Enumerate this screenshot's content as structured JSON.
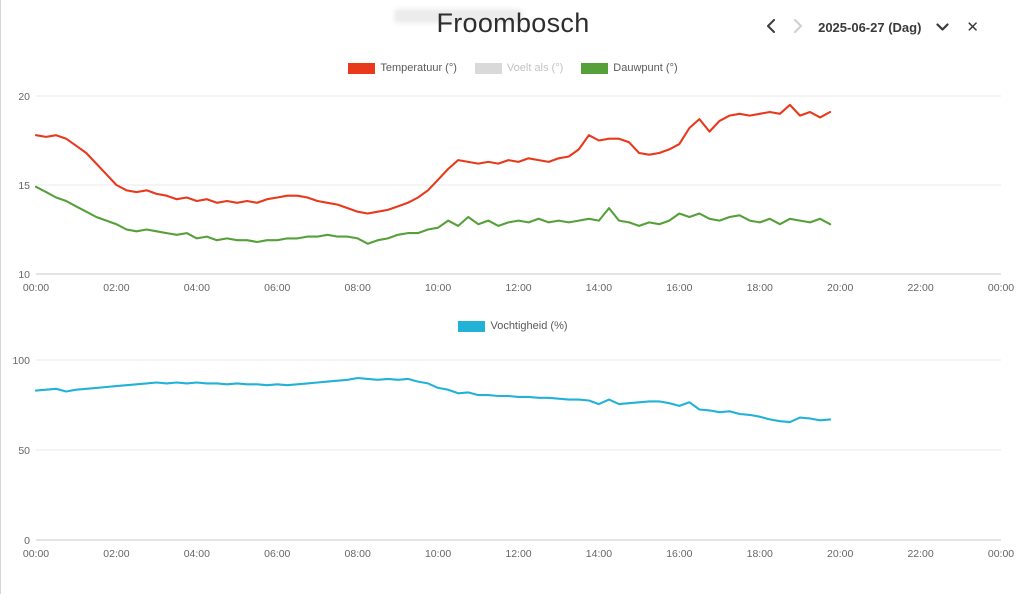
{
  "header": {
    "title": "Froombosch",
    "date_label": "2025-06-27 (Dag)",
    "close_glyph": "✕"
  },
  "chart_data": [
    {
      "type": "line",
      "title": "",
      "x_range": [
        0,
        24
      ],
      "ylim": [
        10,
        20
      ],
      "y_ticks": [
        10,
        15,
        20
      ],
      "x_ticks": [
        {
          "h": 0,
          "label": "00:00"
        },
        {
          "h": 2,
          "label": "02:00"
        },
        {
          "h": 4,
          "label": "04:00"
        },
        {
          "h": 6,
          "label": "06:00"
        },
        {
          "h": 8,
          "label": "08:00"
        },
        {
          "h": 10,
          "label": "10:00"
        },
        {
          "h": 12,
          "label": "12:00"
        },
        {
          "h": 14,
          "label": "14:00"
        },
        {
          "h": 16,
          "label": "16:00"
        },
        {
          "h": 18,
          "label": "18:00"
        },
        {
          "h": 20,
          "label": "20:00"
        },
        {
          "h": 22,
          "label": "22:00"
        },
        {
          "h": 24,
          "label": "00:00"
        }
      ],
      "legend": [
        {
          "label": "Temperatuur (°)",
          "color": "#e8391d",
          "muted": false
        },
        {
          "label": "Voelt als (°)",
          "color": "#d9d9d9",
          "muted": true
        },
        {
          "label": "Dauwpunt (°)",
          "color": "#56a03a",
          "muted": false
        }
      ],
      "series": [
        {
          "name": "Temperatuur",
          "color": "#e8391d",
          "start": 0,
          "step": 0.25,
          "values": [
            17.8,
            17.7,
            17.8,
            17.6,
            17.2,
            16.8,
            16.2,
            15.6,
            15.0,
            14.7,
            14.6,
            14.7,
            14.5,
            14.4,
            14.2,
            14.3,
            14.1,
            14.2,
            14.0,
            14.1,
            14.0,
            14.1,
            14.0,
            14.2,
            14.3,
            14.4,
            14.4,
            14.3,
            14.1,
            14.0,
            13.9,
            13.7,
            13.5,
            13.4,
            13.5,
            13.6,
            13.8,
            14.0,
            14.3,
            14.7,
            15.3,
            15.9,
            16.4,
            16.3,
            16.2,
            16.3,
            16.2,
            16.4,
            16.3,
            16.5,
            16.4,
            16.3,
            16.5,
            16.6,
            17.0,
            17.8,
            17.5,
            17.6,
            17.6,
            17.4,
            16.8,
            16.7,
            16.8,
            17.0,
            17.3,
            18.2,
            18.7,
            18.0,
            18.6,
            18.9,
            19.0,
            18.9,
            19.0,
            19.1,
            19.0,
            19.5,
            18.9,
            19.1,
            18.8,
            19.1
          ]
        },
        {
          "name": "Voelt als",
          "color": "#d9d9d9",
          "start": 0,
          "step": 0.25,
          "hidden": true,
          "values": []
        },
        {
          "name": "Dauwpunt",
          "color": "#56a03a",
          "start": 0,
          "step": 0.25,
          "values": [
            14.9,
            14.6,
            14.3,
            14.1,
            13.8,
            13.5,
            13.2,
            13.0,
            12.8,
            12.5,
            12.4,
            12.5,
            12.4,
            12.3,
            12.2,
            12.3,
            12.0,
            12.1,
            11.9,
            12.0,
            11.9,
            11.9,
            11.8,
            11.9,
            11.9,
            12.0,
            12.0,
            12.1,
            12.1,
            12.2,
            12.1,
            12.1,
            12.0,
            11.7,
            11.9,
            12.0,
            12.2,
            12.3,
            12.3,
            12.5,
            12.6,
            13.0,
            12.7,
            13.2,
            12.8,
            13.0,
            12.7,
            12.9,
            13.0,
            12.9,
            13.1,
            12.9,
            13.0,
            12.9,
            13.0,
            13.1,
            13.0,
            13.7,
            13.0,
            12.9,
            12.7,
            12.9,
            12.8,
            13.0,
            13.4,
            13.2,
            13.4,
            13.1,
            13.0,
            13.2,
            13.3,
            13.0,
            12.9,
            13.1,
            12.8,
            13.1,
            13.0,
            12.9,
            13.1,
            12.8
          ]
        }
      ]
    },
    {
      "type": "line",
      "title": "",
      "x_range": [
        0,
        24
      ],
      "ylim": [
        0,
        100
      ],
      "y_ticks": [
        0,
        50,
        100
      ],
      "x_ticks": [
        {
          "h": 0,
          "label": "00:00"
        },
        {
          "h": 2,
          "label": "02:00"
        },
        {
          "h": 4,
          "label": "04:00"
        },
        {
          "h": 6,
          "label": "06:00"
        },
        {
          "h": 8,
          "label": "08:00"
        },
        {
          "h": 10,
          "label": "10:00"
        },
        {
          "h": 12,
          "label": "12:00"
        },
        {
          "h": 14,
          "label": "14:00"
        },
        {
          "h": 16,
          "label": "16:00"
        },
        {
          "h": 18,
          "label": "18:00"
        },
        {
          "h": 20,
          "label": "20:00"
        },
        {
          "h": 22,
          "label": "22:00"
        },
        {
          "h": 24,
          "label": "00:00"
        }
      ],
      "legend": [
        {
          "label": "Vochtigheid (%)",
          "color": "#22b2d8",
          "muted": false
        }
      ],
      "series": [
        {
          "name": "Vochtigheid",
          "color": "#22b2d8",
          "start": 0,
          "step": 0.25,
          "values": [
            83,
            83.5,
            84,
            82.5,
            83.5,
            84,
            84.5,
            85,
            85.5,
            86,
            86.5,
            87,
            87.5,
            87,
            87.5,
            87,
            87.5,
            87,
            87,
            86.5,
            87,
            86.5,
            86.5,
            86,
            86.5,
            86,
            86.5,
            87,
            87.5,
            88,
            88.5,
            89,
            90,
            89.5,
            89,
            89.5,
            89,
            89.5,
            88,
            87,
            84.5,
            83.5,
            81.5,
            82,
            80.5,
            80.5,
            80,
            80,
            79.5,
            79.5,
            79,
            79,
            78.5,
            78,
            78,
            77.5,
            75.5,
            78,
            75.5,
            76,
            76.5,
            77,
            77,
            76,
            74.5,
            76.5,
            72.5,
            72,
            71,
            71.5,
            70,
            69.5,
            68.5,
            67,
            66,
            65.5,
            68,
            67.5,
            66.5,
            67
          ]
        }
      ]
    }
  ]
}
